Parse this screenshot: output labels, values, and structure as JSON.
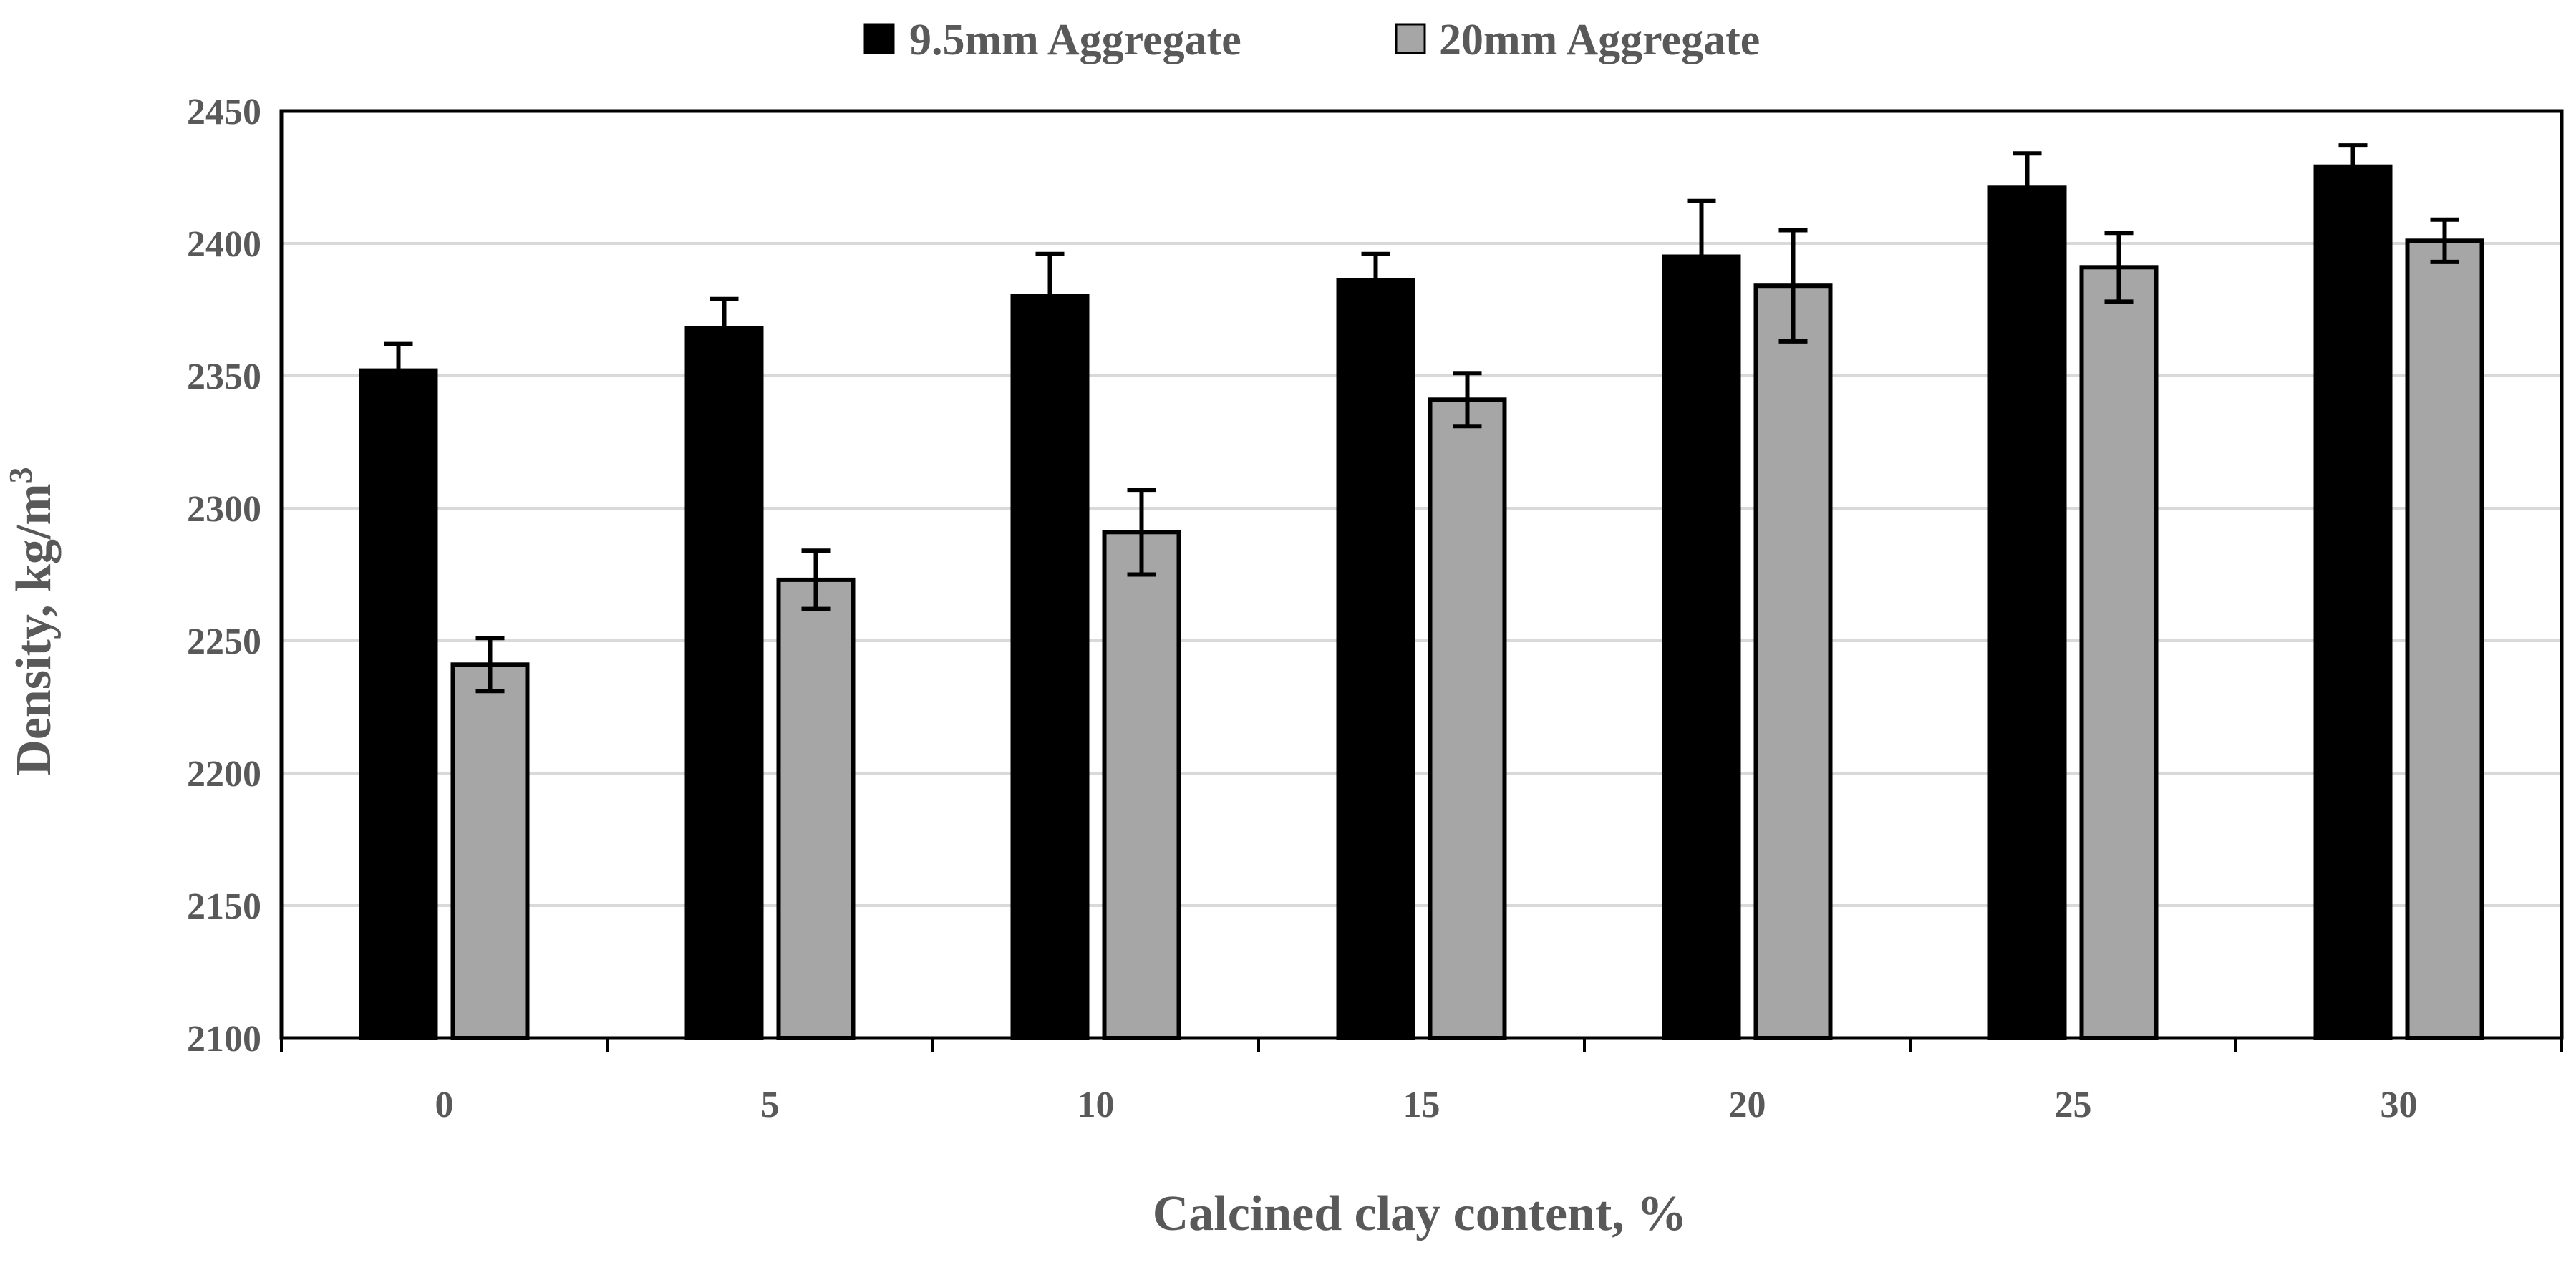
{
  "chart_data": {
    "type": "bar",
    "categories": [
      "0",
      "5",
      "10",
      "15",
      "20",
      "25",
      "30"
    ],
    "series": [
      {
        "name": "9.5mm Aggregate",
        "color": "#000000",
        "values": [
          2352,
          2368,
          2380,
          2386,
          2395,
          2421,
          2429
        ],
        "errors": [
          10,
          11,
          16,
          10,
          21,
          13,
          8
        ]
      },
      {
        "name": "20mm Aggregate",
        "color": "#a6a6a6",
        "values": [
          2241,
          2273,
          2291,
          2341,
          2384,
          2391,
          2401
        ],
        "errors": [
          10,
          11,
          16,
          10,
          21,
          13,
          8
        ]
      }
    ],
    "xlabel": "Calcined clay content, %",
    "ylabel_main": "Density, kg/m",
    "ylabel_sup": "3",
    "ylim": [
      2100,
      2450
    ],
    "yticks": [
      2100,
      2150,
      2200,
      2250,
      2300,
      2350,
      2400,
      2450
    ],
    "grid": true,
    "legend_position": "top-center"
  }
}
